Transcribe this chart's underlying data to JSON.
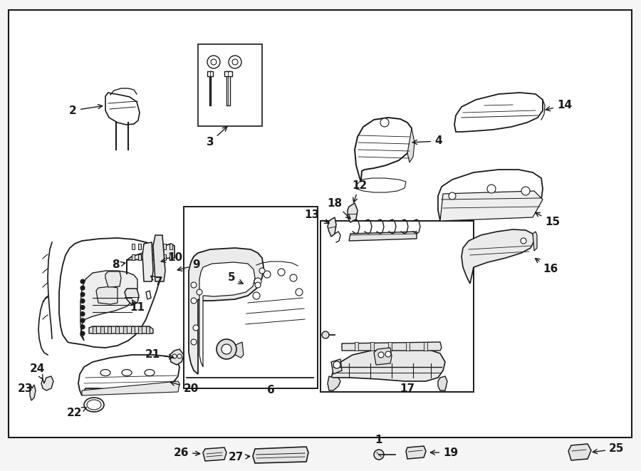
{
  "bg_color": "#f5f5f5",
  "border_bg": "#ffffff",
  "line_color": "#1a1a1a",
  "text_color": "#1a1a1a",
  "fig_width": 9.0,
  "fig_height": 6.61,
  "dpi": 100,
  "label_fontsize": 11,
  "label_fontweight": "bold"
}
